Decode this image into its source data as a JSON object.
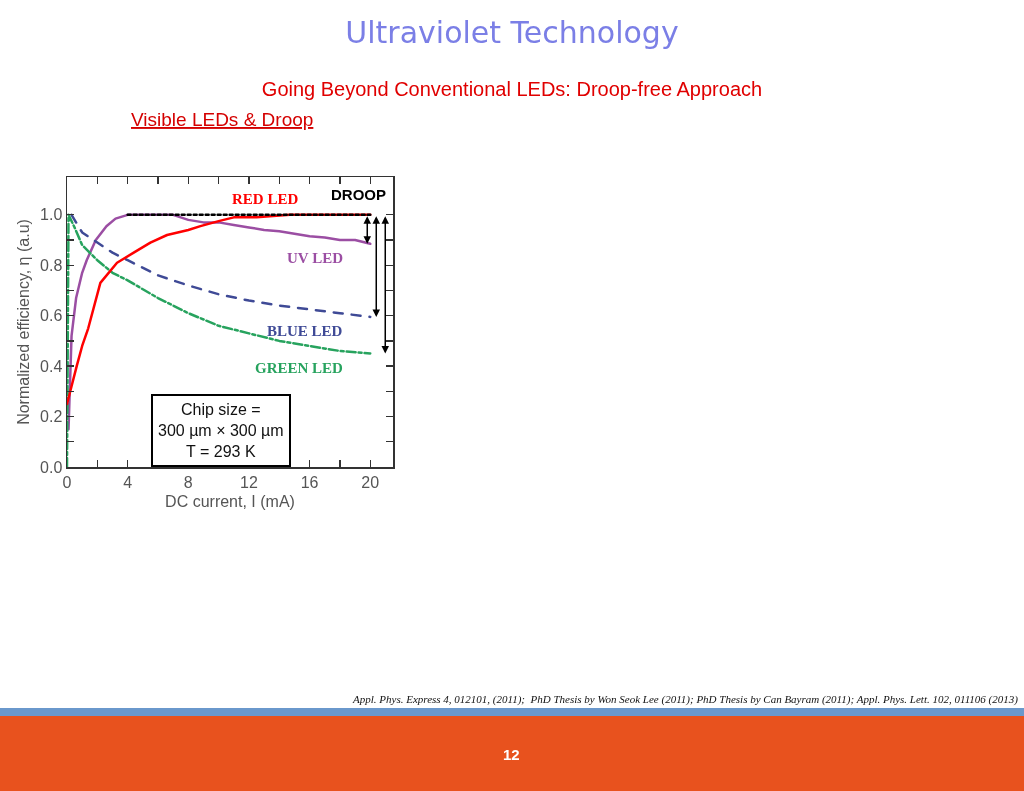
{
  "chart_data": {
    "type": "line",
    "title": "Ultraviolet Technology",
    "subtitle": "Going Beyond Conventional LEDs: Droop-free Approach",
    "xlabel": "DC current, I (mA)",
    "ylabel": "Normalized efficiency, η (a.u)",
    "xlim": [
      0,
      21.5
    ],
    "xticks": [
      0,
      {
        "value": 2,
        "label": null
      },
      4,
      {
        "value": 6,
        "label": null
      },
      8,
      {
        "value": 10,
        "label": null
      },
      12,
      {
        "value": 14,
        "label": null
      },
      16,
      {
        "value": 18,
        "label": null
      },
      20
    ],
    "ylim": [
      0,
      1.15
    ],
    "yticks": [
      {
        "value": 0,
        "label": "0.0"
      },
      {
        "value": 0.1,
        "label": null
      },
      0.2,
      {
        "value": 0.3,
        "label": null
      },
      0.4,
      {
        "value": 0.5,
        "label": null
      },
      0.6,
      {
        "value": 0.7,
        "label": null
      },
      0.8,
      {
        "value": 0.9,
        "label": null
      },
      {
        "value": 1,
        "label": "1.0"
      }
    ],
    "grid": false,
    "legend": false,
    "series": [
      {
        "name": "UV LED",
        "color": "#9b4ea3",
        "line_style": "solid",
        "x": [
          0.1,
          0.3,
          0.6,
          1,
          1.3,
          1.9,
          2.6,
          3.2,
          4,
          7,
          8,
          9,
          10,
          11,
          12,
          13,
          14,
          15,
          16,
          17,
          18,
          19,
          20
        ],
        "values": [
          0.15,
          0.52,
          0.67,
          0.77,
          0.82,
          0.9,
          0.955,
          0.985,
          1.0,
          1.0,
          0.98,
          0.97,
          0.97,
          0.96,
          0.95,
          0.94,
          0.935,
          0.925,
          0.915,
          0.91,
          0.9,
          0.9,
          0.885
        ]
      },
      {
        "name": "BLUE LED",
        "color": "#3f4a96",
        "line_style": "dashed",
        "x": [
          0.3,
          1,
          2,
          3,
          4,
          6,
          8,
          10,
          12,
          14,
          16,
          18,
          20
        ],
        "values": [
          1.0,
          0.93,
          0.89,
          0.85,
          0.82,
          0.76,
          0.72,
          0.685,
          0.66,
          0.64,
          0.625,
          0.61,
          0.595
        ]
      },
      {
        "name": "GREEN LED",
        "color": "#27a35e",
        "line_style": "dashdot",
        "x": [
          0,
          0.1,
          0.5,
          1,
          2,
          3,
          4,
          6,
          8,
          10,
          12,
          14,
          16,
          18,
          20
        ],
        "values": [
          0,
          1.0,
          0.95,
          0.88,
          0.82,
          0.77,
          0.74,
          0.67,
          0.61,
          0.56,
          0.53,
          0.5,
          0.48,
          0.46,
          0.45
        ]
      },
      {
        "name": "RED LED",
        "color": "#ff0000",
        "line_style": "solid",
        "x": [
          0,
          0.3,
          0.64,
          1,
          1.4,
          2.2,
          3.3,
          4.4,
          5.5,
          6.6,
          8,
          8.8,
          10,
          11,
          12.5,
          14.7,
          20
        ],
        "values": [
          0.25,
          0.32,
          0.4,
          0.48,
          0.55,
          0.73,
          0.81,
          0.85,
          0.89,
          0.92,
          0.94,
          0.955,
          0.975,
          0.99,
          0.99,
          1.0,
          1.0
        ]
      },
      {
        "type": "line",
        "color": "#000000",
        "line_style": "dotted",
        "x": [
          4,
          20
        ],
        "values": [
          1.0,
          1.0
        ]
      }
    ],
    "annotations": [
      "Visible LEDs & Droop",
      {
        "text": "DROOP",
        "x": 20,
        "y": 1.0
      },
      "Chip size =\n300 µm × 300 µm\nT = 293 K",
      "Appl. Phys. Express 4, 012101, (2011);  PhD Thesis by Won Seok Lee (2011); PhD Thesis by Can Bayram (2011); Appl. Phys. Lett. 102, 011106 (2013)",
      "12"
    ]
  }
}
